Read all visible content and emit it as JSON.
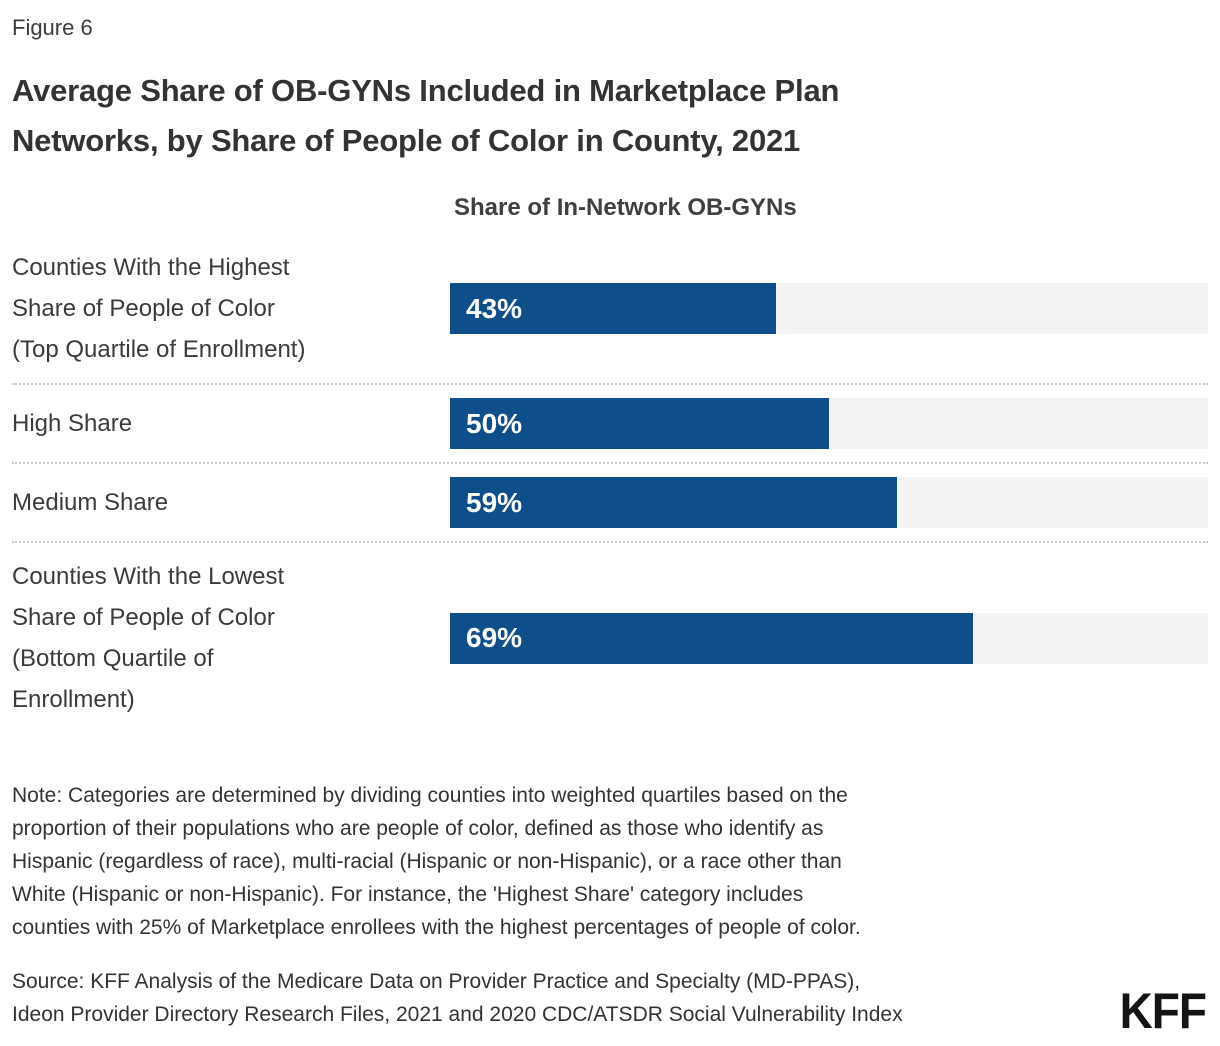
{
  "figure_label": "Figure 6",
  "title": "Average Share of OB-GYNs Included in Marketplace Plan Networks, by Share of People of Color in County, 2021",
  "chart_header": "Share of In-Network OB-GYNs",
  "chart_data": {
    "type": "bar",
    "orientation": "horizontal",
    "title": "Share of In-Network OB-GYNs",
    "categories": [
      "Counties With the Highest\nShare of People of Color\n(Top Quartile of Enrollment)",
      "High Share",
      "Medium Share",
      "Counties With the Lowest\nShare of People of Color\n(Bottom Quartile of\nEnrollment)"
    ],
    "values": [
      43,
      50,
      59,
      69
    ],
    "value_labels": [
      "43%",
      "50%",
      "59%",
      "69%"
    ],
    "xlim": [
      0,
      100
    ],
    "bar_color": "#0e4f8b",
    "track_color": "#f3f3f3",
    "separator_color": "#c9c9c9",
    "value_label_position": "inside-left",
    "grid": false,
    "legend": false
  },
  "note": "Note: Categories are determined by dividing counties into weighted quartiles based on the\nproportion of their populations who are people of color, defined as those who identify as\nHispanic (regardless of race), multi-racial (Hispanic or non-Hispanic), or a race other than\nWhite (Hispanic or non-Hispanic). For instance, the 'Highest Share' category includes\ncounties with 25% of Marketplace enrollees with the highest percentages of people of color.",
  "source": "Source: KFF Analysis of the Medicare Data on Provider Practice and Specialty (MD-PPAS),\nIdeon Provider Directory Research Files, 2021 and 2020 CDC/ATSDR Social Vulnerability Index",
  "logo_text": "KFF"
}
